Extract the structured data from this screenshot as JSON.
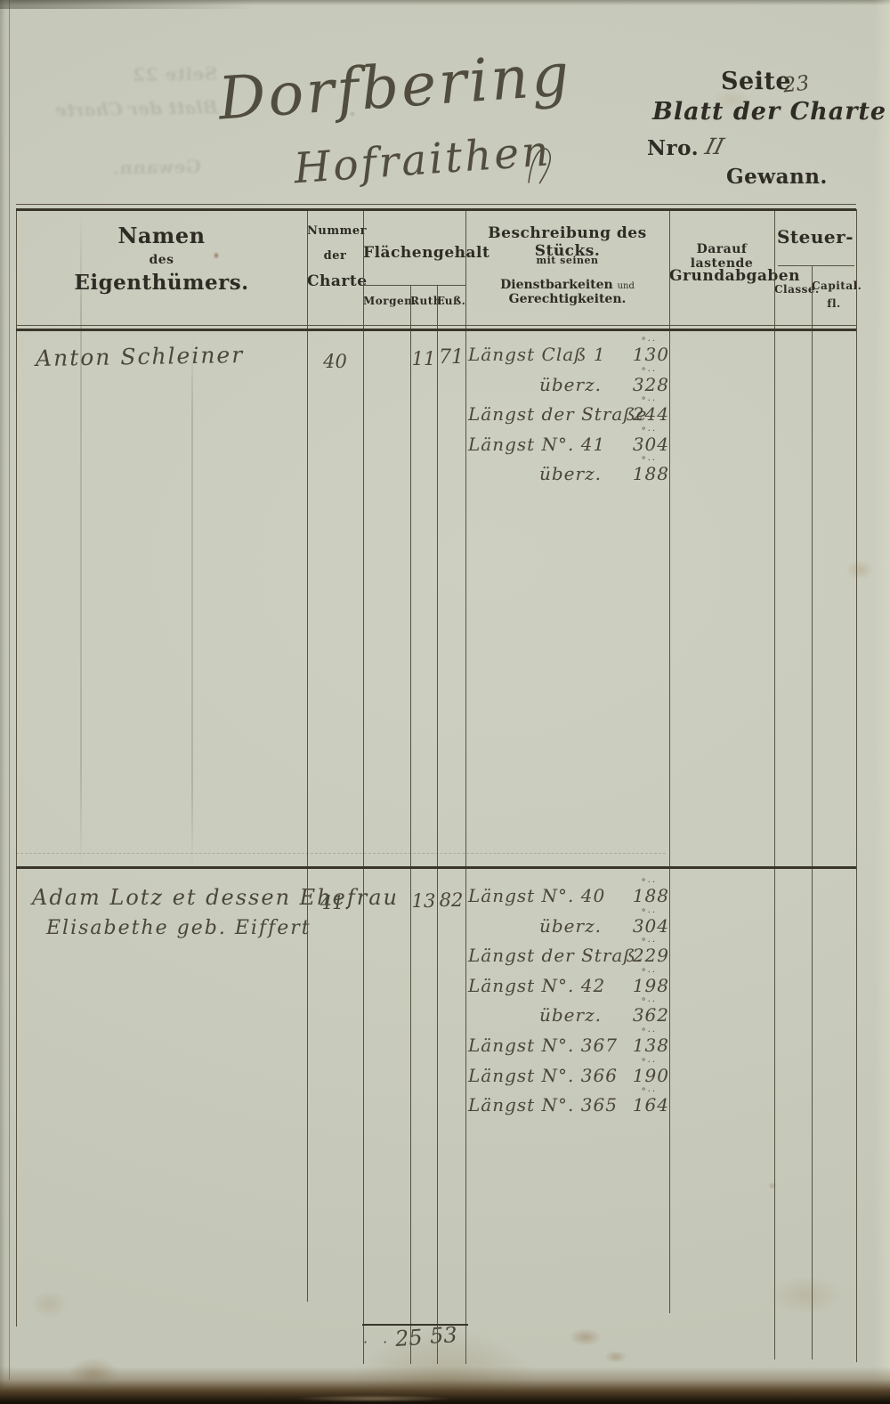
{
  "page": {
    "title_line1": "Dorfbering",
    "title_line2": "Hofraithen",
    "corner": {
      "seite_label": "Seite",
      "seite_value": "23",
      "blatt_label": "Blatt der Charte",
      "nro_label": "Nro.",
      "nro_value": "II",
      "gewann_label": "Gewann."
    },
    "ghost": {
      "line1": "Seite 22",
      "line2": "Blatt der Charte",
      "line3": "Gewann."
    }
  },
  "table": {
    "header": {
      "owner": [
        "Namen",
        "des",
        "Eigenthümers."
      ],
      "charte": [
        "Nummer",
        "der",
        "Charte"
      ],
      "flaeche_label": "Flächengehalt",
      "flaeche_sub": [
        "Morgen.",
        "Ruth.",
        "Fuß."
      ],
      "beschreibung": [
        "Beschreibung des Stücks.",
        "mit seinen"
      ],
      "dienst_parts": [
        "Dienstbarkeiten",
        "und",
        "Gerechtigkeiten."
      ],
      "grundabgaben": [
        "Darauf lastende",
        "Grundabgaben"
      ],
      "steuer_label": "Steuer-",
      "steuer_sub": [
        "Classe.",
        "Capital.",
        "fl."
      ]
    },
    "rows": [
      {
        "owner_lines": [
          "Anton Schleiner"
        ],
        "charte": "40",
        "morgen": "",
        "ruth": "11",
        "fuss": "71",
        "desc": [
          {
            "text": "Längst Claß 1",
            "value": "130",
            "mark": "°··"
          },
          {
            "text": "überz.",
            "value": "328",
            "mark": "°··",
            "indent": true
          },
          {
            "text": "Längst der Straße",
            "value": "244",
            "mark": "°··"
          },
          {
            "text": "Längst N°. 41",
            "value": "304",
            "mark": "°··"
          },
          {
            "text": "überz.",
            "value": "188",
            "mark": "°··",
            "indent": true
          }
        ]
      },
      {
        "owner_lines": [
          "Adam Lotz et dessen Ehefrau",
          "Elisabethe geb. Eiffert"
        ],
        "charte": "41.",
        "morgen": "",
        "ruth": "13",
        "fuss": "82",
        "desc": [
          {
            "text": "Längst N°. 40",
            "value": "188",
            "mark": "°··"
          },
          {
            "text": "überz.",
            "value": "304",
            "mark": "°··",
            "indent": true
          },
          {
            "text": "Längst der Straß.",
            "value": "229",
            "mark": "°··"
          },
          {
            "text": "Längst N°. 42",
            "value": "198",
            "mark": "°··"
          },
          {
            "text": "überz.",
            "value": "362",
            "mark": "°··",
            "indent": true
          },
          {
            "text": "Längst N°. 367",
            "value": "138",
            "mark": "°··"
          },
          {
            "text": "Längst N°. 366",
            "value": "190",
            "mark": "°··"
          },
          {
            "text": "Längst N°. 365",
            "value": "164",
            "mark": "°··"
          }
        ]
      }
    ],
    "sum": {
      "dots": "· ·",
      "ruth": "25",
      "fuss": "53"
    }
  },
  "colors": {
    "paper": "#c9cbbd",
    "print_ink": "#2e2c24",
    "hand_ink": "#4a463a",
    "rule": "#57533f"
  }
}
